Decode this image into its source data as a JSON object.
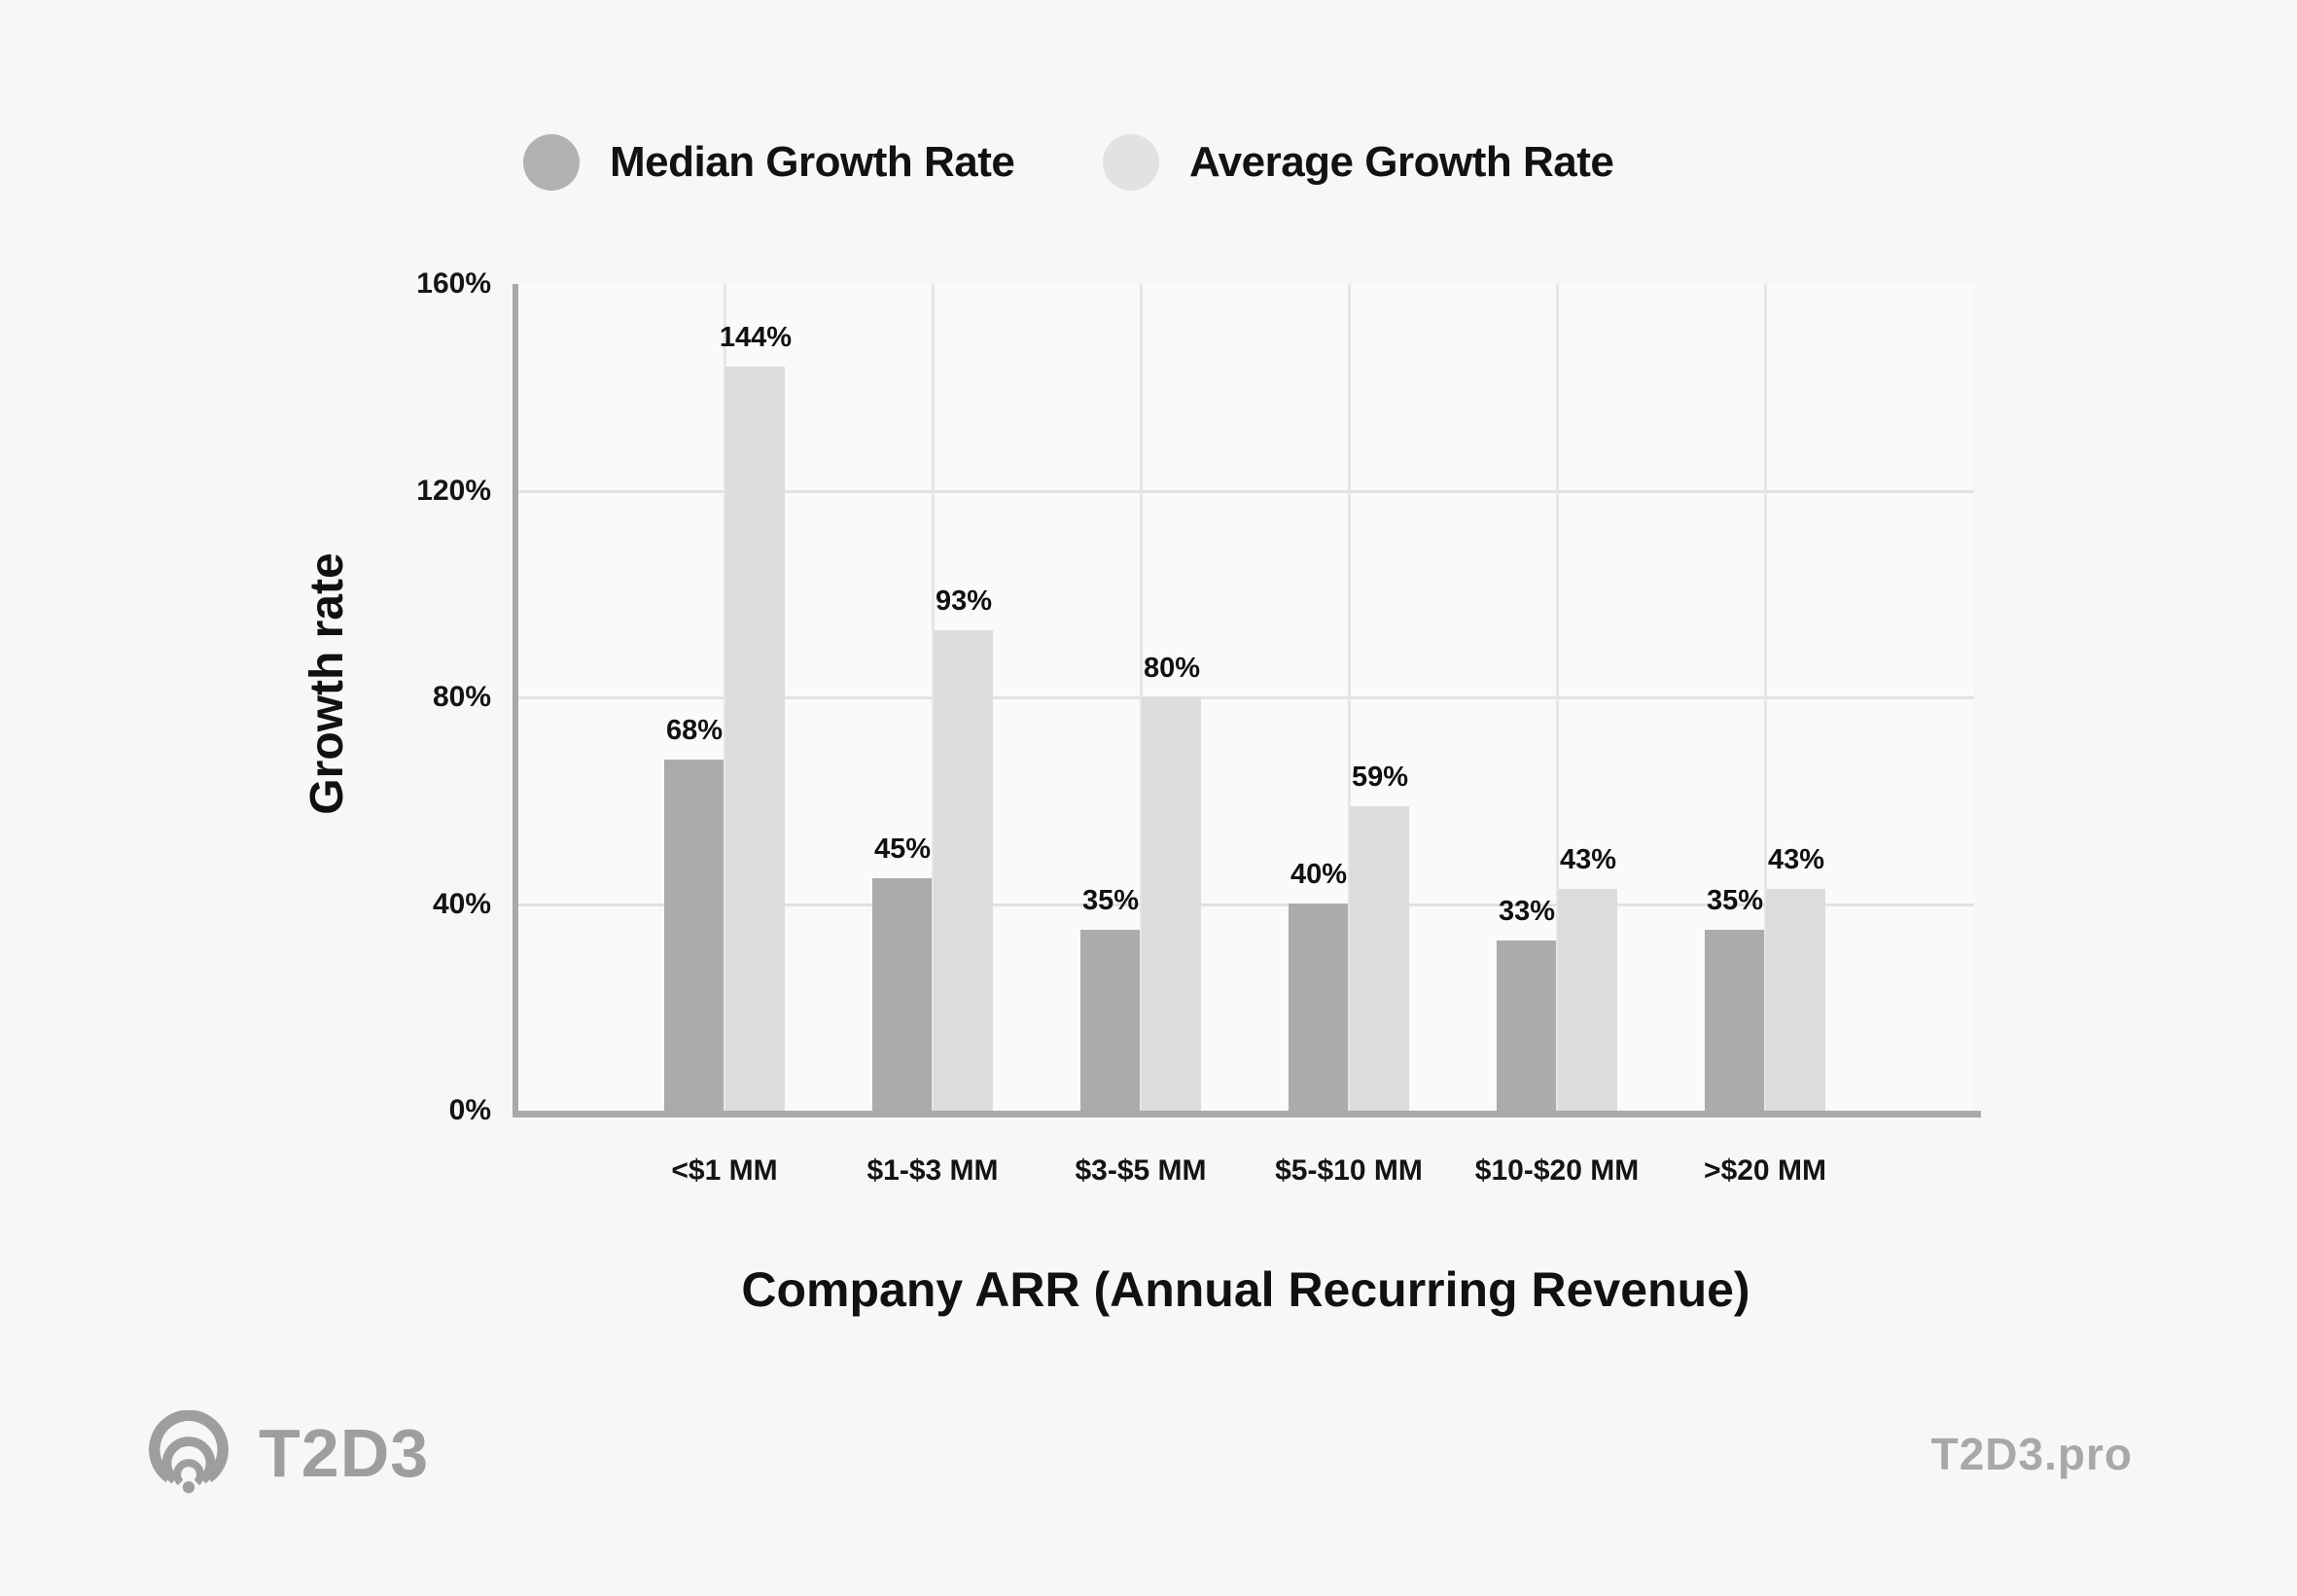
{
  "legend": [
    {
      "label": "Median Growth Rate",
      "color": "#b2b2b2"
    },
    {
      "label": "Average Growth Rate",
      "color": "#e2e2e2"
    }
  ],
  "chart_data": {
    "type": "bar",
    "categories": [
      "<$1 MM",
      "$1-$3 MM",
      "$3-$5 MM",
      "$5-$10 MM",
      "$10-$20 MM",
      ">$20 MM"
    ],
    "series": [
      {
        "name": "Median Growth Rate",
        "color": "#ababab",
        "values": [
          68,
          45,
          35,
          40,
          33,
          35
        ]
      },
      {
        "name": "Average Growth Rate",
        "color": "#dcdcdc",
        "values": [
          144,
          93,
          80,
          59,
          43,
          43
        ]
      }
    ],
    "xlabel": "Company ARR (Annual Recurring Revenue)",
    "ylabel": "Growth rate",
    "ylim": [
      0,
      160
    ],
    "yticks": [
      "0%",
      "40%",
      "80%",
      "120%",
      "160%"
    ],
    "gridline_values": [
      40,
      80,
      120
    ],
    "grid": true,
    "legend_position": "top",
    "value_labels": true,
    "value_label_suffix": "%"
  },
  "footer": {
    "brand": "T2D3",
    "brand_icon": "signal-ripples-icon",
    "brand_color": "#9e9e9e",
    "site": "T2D3.pro",
    "site_color": "#a8a8a8"
  }
}
